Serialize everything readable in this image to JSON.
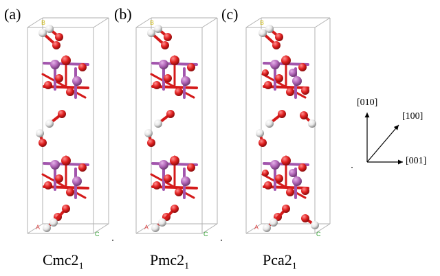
{
  "panels": [
    {
      "label": "(a)",
      "caption_main": "Cmc2",
      "caption_sub": "1",
      "structure": "a"
    },
    {
      "label": "(b)",
      "caption_main": "Pmc2",
      "caption_sub": "1",
      "structure": "b"
    },
    {
      "label": "(c)",
      "caption_main": "Pca2",
      "caption_sub": "1",
      "structure": "c"
    }
  ],
  "cell_labels": {
    "a": "A",
    "b": "B",
    "c": "C"
  },
  "axes": {
    "y": "[010]",
    "diag": "[100]",
    "x": "[001]"
  },
  "colors": {
    "metal": "#b266b8",
    "oxygen": "#e02020",
    "hydrogen": "#e8e8e8",
    "bond_red": "#d41a1a",
    "bond_purple": "#a255ad",
    "cell": "#b0b0b0",
    "label_a": "#e05050",
    "label_b": "#d4c020",
    "label_c": "#30a030"
  }
}
